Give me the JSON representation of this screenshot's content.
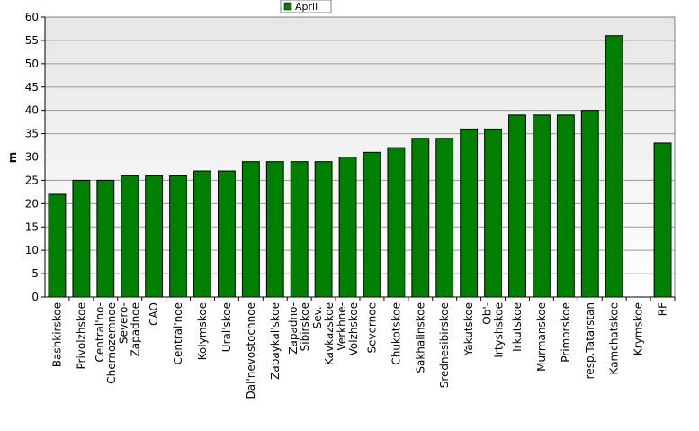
{
  "chart_data": {
    "type": "bar",
    "title": "",
    "xlabel": "",
    "ylabel": "m",
    "ylim": [
      0,
      60
    ],
    "ytick_step": 5,
    "grid": true,
    "legend_position": "top-center",
    "categories": [
      "Bashkirskoe",
      "Privolzhskoe",
      "Central'no-\nChernozemnoe",
      "Severo-\nZapadnoe",
      "CAO",
      "Central'noe",
      "Kolymskoe",
      "Ural'skoe",
      "Dal'nevostochnoe",
      "Zabaykal'skoe",
      "Zapadno-\nSibirskoe",
      "Sev.-\nKavkazskoe",
      "Verkhne-\nVolzhskoe",
      "Severnoe",
      "Chukotskoe",
      "Sakhalinskoe",
      "Srednesibirskoe",
      "Yakutskoe",
      "Ob'-\nIrtyshskoe",
      "Irkutskoe",
      "Murmanskoe",
      "Primorskoe",
      "resp.Tatarstan",
      "Kamchatskoe",
      "Krymskoe",
      "RF"
    ],
    "series": [
      {
        "name": "April",
        "color": "#008000",
        "values": [
          22,
          25,
          25,
          26,
          26,
          26,
          27,
          27,
          29,
          29,
          29,
          29,
          30,
          31,
          32,
          34,
          34,
          36,
          36,
          39,
          39,
          39,
          40,
          56,
          null,
          33
        ]
      }
    ]
  }
}
